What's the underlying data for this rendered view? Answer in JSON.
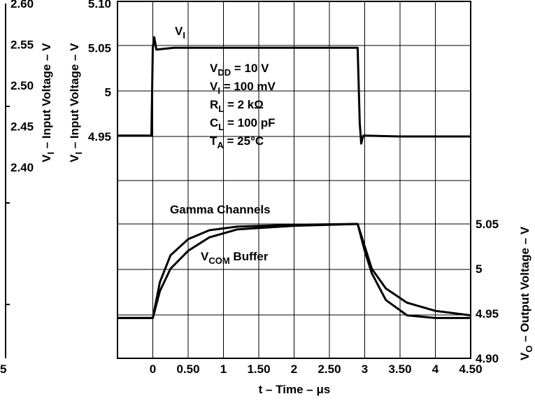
{
  "chart_data": {
    "type": "line",
    "xlabel": "t – Time – μs",
    "x_ticks": [
      "0",
      "0.50",
      "1",
      "1.50",
      "2",
      "2.50",
      "3",
      "3.50",
      "4",
      "4.50"
    ],
    "x_tick_values": [
      0,
      0.5,
      1,
      1.5,
      2,
      2.5,
      3,
      3.5,
      4,
      4.5
    ],
    "xlim": [
      -0.5,
      4.5
    ],
    "grid": true,
    "input_axis": {
      "label_base": "V",
      "label_sub": "I",
      "label_rest": " – Input Voltage – V",
      "ticks": [
        "5.10",
        "5.05",
        "5",
        "4.95"
      ],
      "tick_values": [
        5.1,
        5.05,
        5.0,
        4.95
      ]
    },
    "outer_axis": {
      "label_base": "V",
      "label_sub": "I",
      "label_rest": " – Input Voltage – V",
      "ticks": [
        "2.60",
        "2.55",
        "2.50",
        "2.45",
        "2.40"
      ],
      "tick_values": [
        2.6,
        2.55,
        2.5,
        2.45,
        2.4
      ],
      "corner_label": "5"
    },
    "output_axis": {
      "label_base": "V",
      "label_sub": "O",
      "label_rest": " – Output Voltage – V",
      "ticks": [
        "5.05",
        "5",
        "4.95",
        "4.90"
      ],
      "tick_values": [
        5.05,
        5.0,
        4.95,
        4.9
      ]
    },
    "conditions": [
      {
        "base": "V",
        "sub": "DD",
        "rest": " = 10 V"
      },
      {
        "base": "V",
        "sub": "I",
        "rest": " = 100 mV"
      },
      {
        "base": "R",
        "sub": "L",
        "rest": " = 2 kΩ"
      },
      {
        "base": "C",
        "sub": "L",
        "rest": " = 100 pF"
      },
      {
        "base": "T",
        "sub": "A",
        "rest": " = 25°C"
      }
    ],
    "series": [
      {
        "name": "VI",
        "label_base": "V",
        "label_sub": "I",
        "label_rest": "",
        "axis": "input",
        "points": [
          [
            -0.5,
            4.951
          ],
          [
            -0.02,
            4.951
          ],
          [
            0.0,
            5.05
          ],
          [
            0.02,
            5.062
          ],
          [
            0.05,
            5.048
          ],
          [
            0.3,
            5.05
          ],
          [
            1.0,
            5.05
          ],
          [
            2.0,
            5.05
          ],
          [
            2.9,
            5.05
          ],
          [
            2.93,
            4.965
          ],
          [
            2.95,
            4.942
          ],
          [
            2.98,
            4.951
          ],
          [
            3.5,
            4.95
          ],
          [
            4.5,
            4.95
          ]
        ]
      },
      {
        "name": "Gamma Channels",
        "label_base": "Gamma Channels",
        "label_sub": "",
        "label_rest": "",
        "axis": "output",
        "points": [
          [
            -0.5,
            4.945
          ],
          [
            0.0,
            4.945
          ],
          [
            0.1,
            4.985
          ],
          [
            0.25,
            5.015
          ],
          [
            0.5,
            5.033
          ],
          [
            0.8,
            5.043
          ],
          [
            1.2,
            5.047
          ],
          [
            2.0,
            5.049
          ],
          [
            2.9,
            5.05
          ],
          [
            3.0,
            5.025
          ],
          [
            3.1,
            5.0
          ],
          [
            3.3,
            4.978
          ],
          [
            3.6,
            4.962
          ],
          [
            4.0,
            4.953
          ],
          [
            4.5,
            4.948
          ]
        ]
      },
      {
        "name": "VCOM Buffer",
        "label_base": "V",
        "label_sub": "COM",
        "label_rest": " Buffer",
        "axis": "output",
        "points": [
          [
            -0.5,
            4.945
          ],
          [
            0.0,
            4.945
          ],
          [
            0.1,
            4.975
          ],
          [
            0.25,
            5.0
          ],
          [
            0.5,
            5.02
          ],
          [
            0.8,
            5.035
          ],
          [
            1.2,
            5.044
          ],
          [
            2.0,
            5.048
          ],
          [
            2.9,
            5.05
          ],
          [
            3.0,
            5.02
          ],
          [
            3.1,
            4.995
          ],
          [
            3.3,
            4.965
          ],
          [
            3.6,
            4.948
          ],
          [
            4.0,
            4.945
          ],
          [
            4.5,
            4.945
          ]
        ]
      }
    ]
  }
}
